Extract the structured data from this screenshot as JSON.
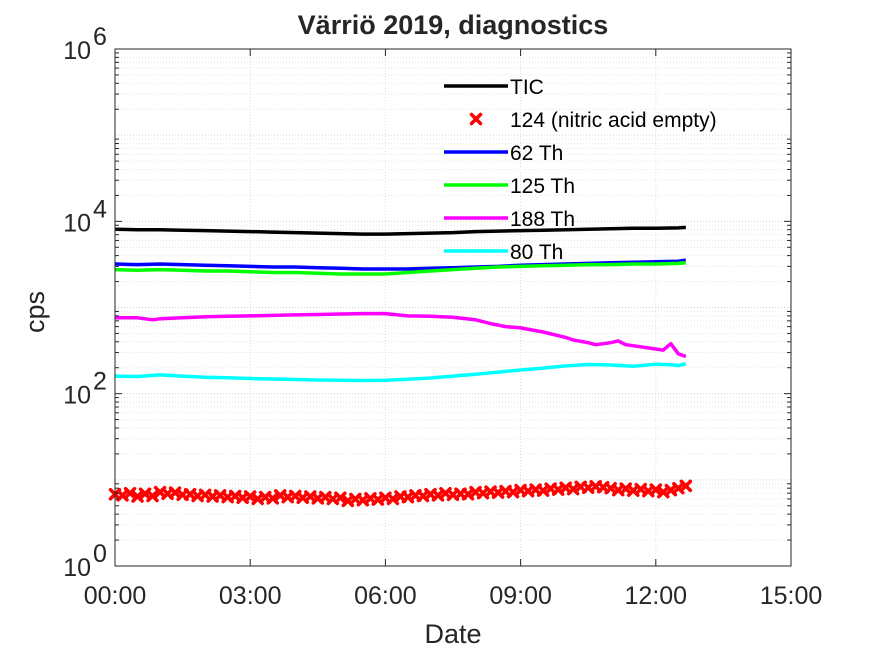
{
  "chart_data": {
    "type": "line",
    "title": "Värriö 2019, diagnostics",
    "xlabel": "Date",
    "ylabel": "cps",
    "xlim": [
      "00:00",
      "15:00"
    ],
    "ylim": [
      1,
      1000000
    ],
    "y_scale": "log",
    "grid": true,
    "minor_grid": true,
    "legend_position": "top-center",
    "x_ticks": [
      "00:00",
      "03:00",
      "06:00",
      "09:00",
      "12:00",
      "15:00"
    ],
    "y_ticks": [
      {
        "base": "10",
        "exp": "0",
        "value": 1
      },
      {
        "base": "10",
        "exp": "2",
        "value": 100
      },
      {
        "base": "10",
        "exp": "4",
        "value": 10000
      },
      {
        "base": "10",
        "exp": "6",
        "value": 1000000
      }
    ],
    "series": [
      {
        "name": "TIC",
        "color": "#000000",
        "style": "line",
        "x": [
          "00:00",
          "00:30",
          "01:00",
          "01:30",
          "02:00",
          "02:30",
          "03:00",
          "03:30",
          "04:00",
          "04:30",
          "05:00",
          "05:30",
          "06:00",
          "06:30",
          "07:00",
          "07:30",
          "08:00",
          "08:30",
          "09:00",
          "09:30",
          "10:00",
          "10:30",
          "11:00",
          "11:30",
          "12:00",
          "12:30",
          "12:40"
        ],
        "y": [
          8100,
          8000,
          8000,
          7900,
          7800,
          7700,
          7600,
          7500,
          7400,
          7300,
          7200,
          7100,
          7100,
          7200,
          7300,
          7400,
          7600,
          7700,
          7800,
          7900,
          8000,
          8100,
          8200,
          8300,
          8300,
          8400,
          8500
        ]
      },
      {
        "name": "124 (nitric acid empty)",
        "color": "#ff0000",
        "style": "marker-x",
        "x": [
          "00:00",
          "00:10",
          "00:20",
          "00:30",
          "00:40",
          "00:50",
          "01:00",
          "01:10",
          "01:20",
          "01:30",
          "01:40",
          "01:50",
          "02:00",
          "02:10",
          "02:20",
          "02:30",
          "02:40",
          "02:50",
          "03:00",
          "03:10",
          "03:20",
          "03:30",
          "03:40",
          "03:50",
          "04:00",
          "04:10",
          "04:20",
          "04:30",
          "04:40",
          "04:50",
          "05:00",
          "05:10",
          "05:20",
          "05:30",
          "05:40",
          "05:50",
          "06:00",
          "06:10",
          "06:20",
          "06:30",
          "06:40",
          "06:50",
          "07:00",
          "07:10",
          "07:20",
          "07:30",
          "07:40",
          "07:50",
          "08:00",
          "08:10",
          "08:20",
          "08:30",
          "08:40",
          "08:50",
          "09:00",
          "09:10",
          "09:20",
          "09:30",
          "09:40",
          "09:50",
          "10:00",
          "10:10",
          "10:20",
          "10:30",
          "10:40",
          "10:50",
          "11:00",
          "11:10",
          "11:20",
          "11:30",
          "11:40",
          "11:50",
          "12:00",
          "12:10",
          "12:20",
          "12:30",
          "12:40"
        ],
        "y": [
          6.8,
          6.6,
          7.0,
          6.4,
          6.9,
          6.5,
          7.2,
          6.9,
          7.1,
          6.7,
          6.8,
          6.5,
          6.7,
          6.4,
          6.6,
          6.3,
          6.5,
          6.2,
          6.4,
          6.0,
          6.3,
          6.1,
          6.6,
          6.3,
          6.5,
          6.2,
          6.4,
          6.1,
          6.3,
          6.0,
          6.2,
          5.7,
          6.0,
          5.8,
          6.1,
          5.9,
          6.2,
          6.0,
          6.4,
          6.3,
          6.6,
          6.5,
          6.8,
          6.6,
          7.0,
          6.7,
          6.9,
          6.8,
          7.2,
          7.0,
          7.3,
          7.1,
          7.4,
          7.2,
          7.6,
          7.4,
          7.7,
          7.5,
          7.9,
          7.7,
          8.1,
          7.8,
          8.3,
          8.1,
          8.4,
          8.2,
          8.0,
          7.6,
          7.9,
          7.5,
          7.8,
          7.4,
          7.7,
          7.2,
          7.6,
          8.0,
          8.5
        ]
      },
      {
        "name": "62 Th",
        "color": "#0000ff",
        "style": "line",
        "x": [
          "00:00",
          "00:30",
          "01:00",
          "01:30",
          "02:00",
          "02:30",
          "03:00",
          "03:30",
          "04:00",
          "04:30",
          "05:00",
          "05:30",
          "06:00",
          "06:30",
          "07:00",
          "07:30",
          "08:00",
          "08:30",
          "09:00",
          "09:30",
          "10:00",
          "10:30",
          "11:00",
          "11:30",
          "12:00",
          "12:30",
          "12:40"
        ],
        "y": [
          3200,
          3150,
          3200,
          3150,
          3100,
          3050,
          3000,
          2950,
          2950,
          2900,
          2850,
          2800,
          2800,
          2800,
          2850,
          2900,
          2950,
          3000,
          3100,
          3150,
          3200,
          3250,
          3300,
          3350,
          3400,
          3450,
          3550
        ]
      },
      {
        "name": "125 Th",
        "color": "#00ff00",
        "style": "line",
        "x": [
          "00:00",
          "00:30",
          "01:00",
          "01:30",
          "02:00",
          "02:30",
          "03:00",
          "03:30",
          "04:00",
          "04:30",
          "05:00",
          "05:30",
          "06:00",
          "06:30",
          "07:00",
          "07:30",
          "08:00",
          "08:30",
          "09:00",
          "09:30",
          "10:00",
          "10:30",
          "11:00",
          "11:30",
          "12:00",
          "12:30",
          "12:40"
        ],
        "y": [
          2750,
          2700,
          2750,
          2700,
          2650,
          2650,
          2600,
          2550,
          2550,
          2500,
          2450,
          2450,
          2450,
          2550,
          2650,
          2750,
          2850,
          2950,
          3000,
          3050,
          3100,
          3150,
          3150,
          3200,
          3200,
          3250,
          3300
        ]
      },
      {
        "name": "188 Th",
        "color": "#ff00ff",
        "style": "line",
        "x": [
          "00:00",
          "00:30",
          "00:50",
          "01:00",
          "01:30",
          "02:00",
          "02:30",
          "03:00",
          "03:30",
          "04:00",
          "04:30",
          "05:00",
          "05:30",
          "06:00",
          "06:30",
          "07:00",
          "07:30",
          "08:00",
          "08:20",
          "08:40",
          "09:00",
          "09:30",
          "10:00",
          "10:10",
          "10:30",
          "10:40",
          "11:00",
          "11:10",
          "11:20",
          "11:40",
          "12:00",
          "12:10",
          "12:20",
          "12:30",
          "12:40"
        ],
        "y": [
          760,
          760,
          720,
          740,
          760,
          780,
          790,
          800,
          810,
          820,
          830,
          840,
          850,
          850,
          800,
          790,
          770,
          720,
          650,
          600,
          580,
          520,
          450,
          420,
          390,
          370,
          390,
          410,
          370,
          350,
          330,
          320,
          380,
          290,
          270
        ]
      },
      {
        "name": "80 Th",
        "color": "#00ffff",
        "style": "line",
        "x": [
          "00:00",
          "00:30",
          "01:00",
          "01:30",
          "02:00",
          "02:30",
          "03:00",
          "03:30",
          "04:00",
          "04:30",
          "05:00",
          "05:30",
          "06:00",
          "06:30",
          "07:00",
          "07:30",
          "08:00",
          "08:30",
          "09:00",
          "09:30",
          "10:00",
          "10:30",
          "11:00",
          "11:30",
          "12:00",
          "12:20",
          "12:30",
          "12:40"
        ],
        "y": [
          160,
          158,
          165,
          160,
          155,
          153,
          150,
          148,
          146,
          144,
          143,
          142,
          143,
          147,
          152,
          160,
          168,
          178,
          188,
          198,
          210,
          218,
          215,
          208,
          220,
          216,
          212,
          222
        ]
      }
    ]
  }
}
